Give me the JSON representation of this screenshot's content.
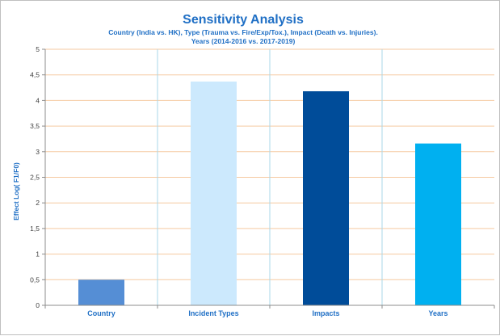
{
  "chart_data": {
    "type": "bar",
    "title": "Sensitivity Analysis",
    "subtitle_lines": [
      "Country (India vs. HK), Type (Trauma vs. Fire/Exp/Tox.), Impact (Death vs. Injuries).",
      "Years (2014-2016 vs. 2017-2019)"
    ],
    "xlabel": "",
    "ylabel": "Effect Log( F1/F0)",
    "categories": [
      "Country",
      "Incident Types",
      "Impacts",
      "Years"
    ],
    "values": [
      0.5,
      4.37,
      4.18,
      3.16
    ],
    "bar_colors": [
      "#558ed5",
      "#cce9fd",
      "#004c99",
      "#00b0f0"
    ],
    "ylim": [
      0,
      5
    ],
    "yticks": [
      "0",
      "0,5",
      "1",
      "1,5",
      "2",
      "2,5",
      "3",
      "3,5",
      "4",
      "4,5",
      "5"
    ],
    "grid": true,
    "gridline_color": "#f5c9a0",
    "category_separator_color": "#a9d7ea",
    "text_color": "#1f6fc5",
    "legend": "none"
  }
}
